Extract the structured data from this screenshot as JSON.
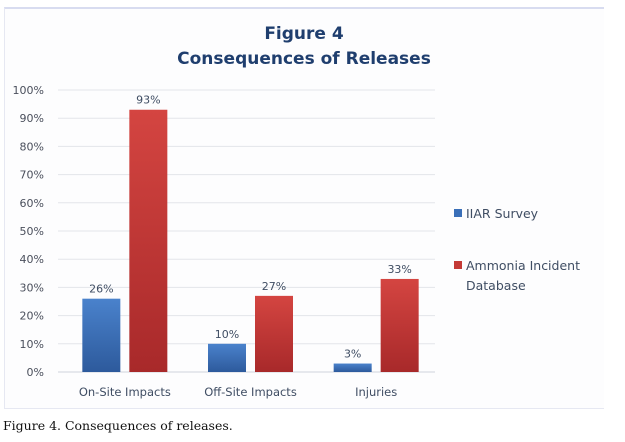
{
  "chart_data": {
    "type": "bar",
    "title_line1": "Figure 4",
    "title_line2": "Consequences of Releases",
    "xlabel": "",
    "ylabel": "",
    "ylim": [
      0,
      100
    ],
    "yticks": [
      0,
      10,
      20,
      30,
      40,
      50,
      60,
      70,
      80,
      90,
      100
    ],
    "ytick_format": "percent",
    "grid": true,
    "legend_position": "right",
    "categories": [
      "On-Site Impacts",
      "Off-Site Impacts",
      "Injuries"
    ],
    "series": [
      {
        "name": "IIAR Survey",
        "color": "#3a6fb8",
        "values": [
          26,
          10,
          3
        ],
        "labels": [
          "26%",
          "10%",
          "3%"
        ]
      },
      {
        "name": "Ammonia Incident Database",
        "color": "#c43a36",
        "values": [
          93,
          27,
          33
        ],
        "labels": [
          "93%",
          "27%",
          "33%"
        ]
      }
    ],
    "legend": [
      {
        "lines": [
          "IIAR Survey"
        ],
        "color": "#3a6fb8"
      },
      {
        "lines": [
          "Ammonia Incident",
          "Database"
        ],
        "color": "#c43a36"
      }
    ]
  },
  "caption": "Figure 4. Consequences of releases."
}
